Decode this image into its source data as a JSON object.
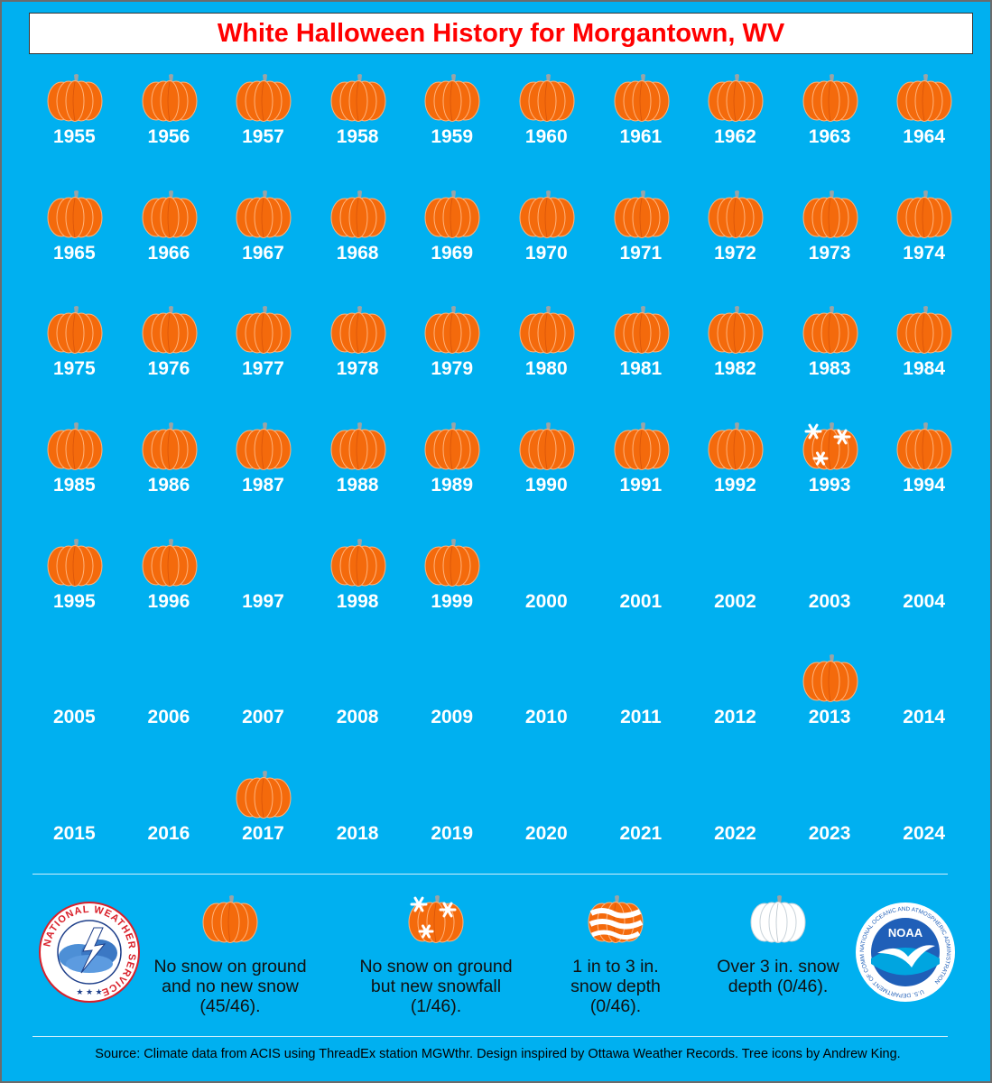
{
  "title": "White Halloween History for Morgantown, WV",
  "colors": {
    "background": "#00b0f0",
    "title_text": "#ff0000",
    "pumpkin": "#f46a0c",
    "pumpkin_dark": "#d9540a",
    "stem": "#9aa4a6",
    "year_text": "#ffffff"
  },
  "rows": [
    [
      {
        "year": "1955",
        "icon": "pumpkin"
      },
      {
        "year": "1956",
        "icon": "pumpkin"
      },
      {
        "year": "1957",
        "icon": "pumpkin"
      },
      {
        "year": "1958",
        "icon": "pumpkin"
      },
      {
        "year": "1959",
        "icon": "pumpkin"
      },
      {
        "year": "1960",
        "icon": "pumpkin"
      },
      {
        "year": "1961",
        "icon": "pumpkin"
      },
      {
        "year": "1962",
        "icon": "pumpkin"
      },
      {
        "year": "1963",
        "icon": "pumpkin"
      },
      {
        "year": "1964",
        "icon": "pumpkin"
      }
    ],
    [
      {
        "year": "1965",
        "icon": "pumpkin"
      },
      {
        "year": "1966",
        "icon": "pumpkin"
      },
      {
        "year": "1967",
        "icon": "pumpkin"
      },
      {
        "year": "1968",
        "icon": "pumpkin"
      },
      {
        "year": "1969",
        "icon": "pumpkin"
      },
      {
        "year": "1970",
        "icon": "pumpkin"
      },
      {
        "year": "1971",
        "icon": "pumpkin"
      },
      {
        "year": "1972",
        "icon": "pumpkin"
      },
      {
        "year": "1973",
        "icon": "pumpkin"
      },
      {
        "year": "1974",
        "icon": "pumpkin"
      }
    ],
    [
      {
        "year": "1975",
        "icon": "pumpkin"
      },
      {
        "year": "1976",
        "icon": "pumpkin"
      },
      {
        "year": "1977",
        "icon": "pumpkin"
      },
      {
        "year": "1978",
        "icon": "pumpkin"
      },
      {
        "year": "1979",
        "icon": "pumpkin"
      },
      {
        "year": "1980",
        "icon": "pumpkin"
      },
      {
        "year": "1981",
        "icon": "pumpkin"
      },
      {
        "year": "1982",
        "icon": "pumpkin"
      },
      {
        "year": "1983",
        "icon": "pumpkin"
      },
      {
        "year": "1984",
        "icon": "pumpkin"
      }
    ],
    [
      {
        "year": "1985",
        "icon": "pumpkin"
      },
      {
        "year": "1986",
        "icon": "pumpkin"
      },
      {
        "year": "1987",
        "icon": "pumpkin"
      },
      {
        "year": "1988",
        "icon": "pumpkin"
      },
      {
        "year": "1989",
        "icon": "pumpkin"
      },
      {
        "year": "1990",
        "icon": "pumpkin"
      },
      {
        "year": "1991",
        "icon": "pumpkin"
      },
      {
        "year": "1992",
        "icon": "pumpkin"
      },
      {
        "year": "1993",
        "icon": "pumpkin-snowfall"
      },
      {
        "year": "1994",
        "icon": "pumpkin"
      }
    ],
    [
      {
        "year": "1995",
        "icon": "pumpkin"
      },
      {
        "year": "1996",
        "icon": "pumpkin"
      },
      {
        "year": "1997",
        "icon": "none"
      },
      {
        "year": "1998",
        "icon": "pumpkin"
      },
      {
        "year": "1999",
        "icon": "pumpkin"
      },
      {
        "year": "2000",
        "icon": "none"
      },
      {
        "year": "2001",
        "icon": "none"
      },
      {
        "year": "2002",
        "icon": "none"
      },
      {
        "year": "2003",
        "icon": "none"
      },
      {
        "year": "2004",
        "icon": "none"
      }
    ],
    [
      {
        "year": "2005",
        "icon": "none"
      },
      {
        "year": "2006",
        "icon": "none"
      },
      {
        "year": "2007",
        "icon": "none"
      },
      {
        "year": "2008",
        "icon": "none"
      },
      {
        "year": "2009",
        "icon": "none"
      },
      {
        "year": "2010",
        "icon": "none"
      },
      {
        "year": "2011",
        "icon": "none"
      },
      {
        "year": "2012",
        "icon": "none"
      },
      {
        "year": "2013",
        "icon": "pumpkin"
      },
      {
        "year": "2014",
        "icon": "none"
      }
    ],
    [
      {
        "year": "2015",
        "icon": "none"
      },
      {
        "year": "2016",
        "icon": "none"
      },
      {
        "year": "2017",
        "icon": "pumpkin"
      },
      {
        "year": "2018",
        "icon": "none"
      },
      {
        "year": "2019",
        "icon": "none"
      },
      {
        "year": "2020",
        "icon": "none"
      },
      {
        "year": "2021",
        "icon": "none"
      },
      {
        "year": "2022",
        "icon": "none"
      },
      {
        "year": "2023",
        "icon": "none"
      },
      {
        "year": "2024",
        "icon": "none"
      }
    ]
  ],
  "legend": {
    "no_snow": "No snow on ground and no new snow (45/46).",
    "new_snowfall": "No snow on ground but new snowfall (1/46).",
    "one_to_three": "1 in to 3 in. snow depth (0/46).",
    "over_three": "Over 3 in. snow depth (0/46)."
  },
  "logos": {
    "nws_text": "NATIONAL WEATHER SERVICE",
    "noaa_text": "NOAA",
    "noaa_ring_text": "NATIONAL OCEANIC AND ATMOSPHERIC ADMINISTRATION",
    "noaa_ring_bottom": "U.S. DEPARTMENT OF COMMERCE"
  },
  "source": "Source: Climate data from ACIS using ThreadEx station MGWthr. Design inspired by Ottawa Weather Records. Tree icons by Andrew King."
}
